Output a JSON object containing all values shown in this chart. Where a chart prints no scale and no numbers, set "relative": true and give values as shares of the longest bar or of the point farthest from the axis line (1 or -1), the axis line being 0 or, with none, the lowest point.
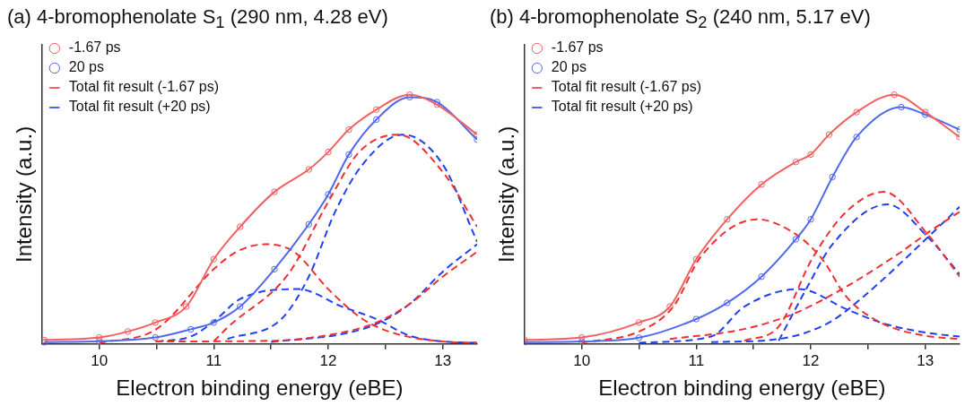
{
  "chart_data": [
    {
      "type": "line",
      "title": "(a) 4-bromophenolate S$_{1}$ (290 nm, 4.28 eV)",
      "xlabel": "Electron binding energy (eBE)",
      "ylabel": "Intensity (a.u.)",
      "relative": true,
      "xlim": [
        9.5,
        13.3
      ],
      "xticks": [
        10,
        {
          "value": 10.5,
          "label": null
        },
        11,
        {
          "value": 11.5,
          "label": null
        },
        12,
        {
          "value": 12.5,
          "label": null
        },
        13
      ],
      "grid": false,
      "legend": "top left",
      "series": [
        {
          "name": "-1.67 ps",
          "type": "scatter",
          "marker": "circle",
          "color": "#f26060",
          "x": [
            9.52,
            10,
            10.25,
            10.49,
            10.76,
            11,
            11.23,
            11.53,
            11.83,
            12,
            12.18,
            12.42,
            12.71,
            12.95,
            13.3
          ],
          "values": [
            0.016,
            0.026,
            0.05,
            0.086,
            0.15,
            0.34,
            0.47,
            0.61,
            0.7,
            0.77,
            0.86,
            0.94,
            1,
            0.96,
            0.84
          ]
        },
        {
          "name": "20 ps",
          "type": "scatter",
          "marker": "circle",
          "color": "#5068f0",
          "x": [
            9.52,
            10,
            10.49,
            10.8,
            11,
            11.23,
            11.53,
            11.83,
            12,
            12.18,
            12.42,
            12.71,
            12.95,
            13.3
          ],
          "values": [
            0.007,
            0.011,
            0.026,
            0.059,
            0.086,
            0.15,
            0.3,
            0.48,
            0.6,
            0.76,
            0.9,
            0.99,
            0.97,
            0.82
          ]
        },
        {
          "name": "Total fit result (-1.67 ps)",
          "type": "line",
          "marker": "none",
          "line_style": "solid",
          "color": "#f26060",
          "x": [
            9.52,
            10,
            10.25,
            10.49,
            10.76,
            11,
            11.23,
            11.53,
            11.83,
            12,
            12.18,
            12.42,
            12.71,
            12.95,
            13.3
          ],
          "values": [
            0.016,
            0.026,
            0.05,
            0.086,
            0.15,
            0.34,
            0.47,
            0.61,
            0.7,
            0.77,
            0.86,
            0.94,
            1,
            0.96,
            0.84
          ]
        },
        {
          "name": "Total fit result (+20 ps)",
          "type": "line",
          "marker": "none",
          "line_style": "solid",
          "color": "#5068f0",
          "x": [
            9.52,
            10,
            10.49,
            10.8,
            11,
            11.23,
            11.53,
            11.83,
            12,
            12.18,
            12.42,
            12.71,
            12.95,
            13.3
          ],
          "values": [
            0.007,
            0.011,
            0.026,
            0.059,
            0.086,
            0.15,
            0.3,
            0.48,
            0.6,
            0.76,
            0.9,
            0.99,
            0.97,
            0.82
          ]
        },
        {
          "type": "line",
          "marker": "none",
          "line_style": "dashed",
          "color": "#f03030",
          "x": [
            10,
            10.5,
            11,
            11.2,
            11.45,
            11.7,
            12,
            12.3,
            12.6,
            13,
            13.3
          ],
          "values": [
            0.003,
            0.06,
            0.3,
            0.37,
            0.4,
            0.37,
            0.22,
            0.1,
            0.04,
            0.01,
            0.005
          ]
        },
        {
          "type": "line",
          "marker": "none",
          "line_style": "dashed",
          "color": "#f03030",
          "x": [
            11,
            11.12,
            11.65,
            12,
            12.27,
            12.61,
            13,
            13.3
          ],
          "values": [
            0.01,
            0.066,
            0.28,
            0.57,
            0.77,
            0.84,
            0.69,
            0.47
          ]
        },
        {
          "type": "line",
          "marker": "none",
          "line_style": "dashed",
          "color": "#f03030",
          "x": [
            10.49,
            11.5,
            12.12,
            12.42,
            12.71,
            13,
            13.3
          ],
          "values": [
            0.01,
            0.013,
            0.046,
            0.086,
            0.16,
            0.27,
            0.37
          ]
        },
        {
          "type": "line",
          "marker": "none",
          "line_style": "dashed",
          "color": "#2040f0",
          "x": [
            10.5,
            10.8,
            11,
            11.23,
            11.74,
            12.12,
            12.42,
            12.71,
            13,
            13.3
          ],
          "values": [
            0.01,
            0.03,
            0.09,
            0.18,
            0.22,
            0.15,
            0.1,
            0.033,
            0.01,
            0.005
          ]
        },
        {
          "type": "line",
          "marker": "none",
          "line_style": "dashed",
          "color": "#2040f0",
          "x": [
            11.12,
            11.59,
            11.83,
            12.06,
            12.3,
            12.65,
            13,
            13.3
          ],
          "values": [
            0.02,
            0.1,
            0.27,
            0.53,
            0.72,
            0.84,
            0.72,
            0.41
          ]
        },
        {
          "type": "line",
          "marker": "none",
          "line_style": "dashed",
          "color": "#2040f0",
          "x": [
            11.5,
            12.12,
            12.42,
            12.71,
            13,
            13.3
          ],
          "values": [
            0.008,
            0.04,
            0.08,
            0.16,
            0.29,
            0.4
          ]
        }
      ]
    },
    {
      "type": "line",
      "title": "(b) 4-bromophenolate S$_{2}$ (240 nm, 5.17 eV)",
      "xlabel": "Electron binding energy (eBE)",
      "ylabel": "Intensity (a.u.)",
      "relative": true,
      "xlim": [
        9.5,
        13.3
      ],
      "xticks": [
        10,
        {
          "value": 10.5,
          "label": null
        },
        11,
        {
          "value": 11.5,
          "label": null
        },
        12,
        {
          "value": 12.5,
          "label": null
        },
        13
      ],
      "grid": false,
      "legend": "top left",
      "series": [
        {
          "name": "-1.67 ps",
          "type": "scatter",
          "marker": "circle",
          "color": "#f26060",
          "x": [
            9.5,
            10,
            10.5,
            10.77,
            11,
            11.27,
            11.57,
            11.87,
            12,
            12.16,
            12.4,
            12.73,
            13,
            13.3
          ],
          "values": [
            0.016,
            0.026,
            0.086,
            0.15,
            0.34,
            0.5,
            0.64,
            0.73,
            0.76,
            0.84,
            0.93,
            1,
            0.93,
            0.83
          ]
        },
        {
          "name": "20 ps",
          "type": "scatter",
          "marker": "circle",
          "color": "#5068f0",
          "x": [
            9.5,
            10,
            10.5,
            11,
            11.27,
            11.57,
            11.87,
            12,
            12.19,
            12.4,
            12.79,
            13,
            13.3
          ],
          "values": [
            0.007,
            0.01,
            0.025,
            0.1,
            0.165,
            0.27,
            0.42,
            0.5,
            0.67,
            0.83,
            0.95,
            0.92,
            0.86
          ]
        },
        {
          "name": "Total fit result (-1.67 ps)",
          "type": "line",
          "marker": "none",
          "line_style": "solid",
          "color": "#f26060",
          "x": [
            9.5,
            10,
            10.5,
            10.77,
            11,
            11.27,
            11.57,
            11.87,
            12,
            12.16,
            12.4,
            12.73,
            13,
            13.3
          ],
          "values": [
            0.016,
            0.026,
            0.086,
            0.15,
            0.34,
            0.5,
            0.64,
            0.73,
            0.76,
            0.84,
            0.93,
            1,
            0.93,
            0.83
          ]
        },
        {
          "name": "Total fit result (+20 ps)",
          "type": "line",
          "marker": "none",
          "line_style": "solid",
          "color": "#5068f0",
          "x": [
            9.5,
            10,
            10.5,
            11,
            11.27,
            11.57,
            11.87,
            12,
            12.19,
            12.4,
            12.79,
            13,
            13.3
          ],
          "values": [
            0.007,
            0.01,
            0.025,
            0.1,
            0.165,
            0.27,
            0.42,
            0.5,
            0.67,
            0.83,
            0.95,
            0.92,
            0.86
          ]
        },
        {
          "type": "line",
          "marker": "none",
          "line_style": "dashed",
          "color": "#f03030",
          "x": [
            10,
            10.5,
            10.8,
            11.04,
            11.53,
            11.87,
            12.1,
            12.31,
            12.61,
            13,
            13.3
          ],
          "values": [
            0.005,
            0.05,
            0.15,
            0.35,
            0.5,
            0.44,
            0.34,
            0.19,
            0.086,
            0.033,
            0.02
          ]
        },
        {
          "type": "line",
          "marker": "none",
          "line_style": "dashed",
          "color": "#f03030",
          "x": [
            11.42,
            11.72,
            12.01,
            12.31,
            12.64,
            13.02,
            13.3
          ],
          "values": [
            0.013,
            0.07,
            0.34,
            0.53,
            0.61,
            0.44,
            0.27
          ]
        },
        {
          "type": "line",
          "marker": "none",
          "line_style": "dashed",
          "color": "#f03030",
          "x": [
            10.77,
            11.42,
            11.87,
            12.31,
            12.76,
            13.05,
            13.3
          ],
          "values": [
            0.02,
            0.06,
            0.125,
            0.23,
            0.36,
            0.455,
            0.53
          ]
        },
        {
          "type": "line",
          "marker": "none",
          "line_style": "dashed",
          "color": "#2040f0",
          "x": [
            10.5,
            11.13,
            11.42,
            11.9,
            12.31,
            12.61,
            13,
            13.3
          ],
          "values": [
            0.005,
            0.03,
            0.15,
            0.22,
            0.14,
            0.086,
            0.046,
            0.03
          ]
        },
        {
          "type": "line",
          "marker": "none",
          "line_style": "dashed",
          "color": "#2040f0",
          "x": [
            11.72,
            11.96,
            12.19,
            12.67,
            13.02,
            13.3
          ],
          "values": [
            0.013,
            0.22,
            0.4,
            0.56,
            0.43,
            0.28
          ]
        },
        {
          "type": "line",
          "marker": "none",
          "line_style": "dashed",
          "color": "#2040f0",
          "x": [
            11.13,
            11.72,
            12.16,
            12.46,
            13.05,
            13.3
          ],
          "values": [
            0.007,
            0.02,
            0.086,
            0.19,
            0.44,
            0.55
          ]
        }
      ]
    }
  ]
}
